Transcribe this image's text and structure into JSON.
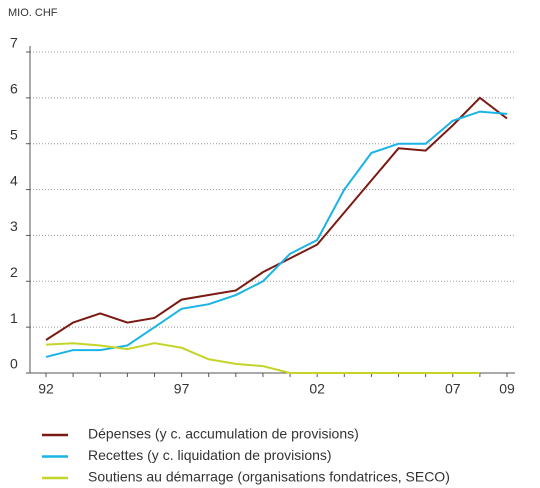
{
  "chart_data": {
    "type": "line",
    "ylabel": "MIO. CHF",
    "categories": [
      "92",
      null,
      null,
      null,
      null,
      "97",
      null,
      null,
      null,
      null,
      "02",
      null,
      null,
      null,
      null,
      "07",
      null,
      "09"
    ],
    "ylim": [
      0,
      7
    ],
    "yticks": [
      0,
      1,
      2,
      3,
      4,
      5,
      6,
      7
    ],
    "grid": true,
    "series": [
      {
        "name": "Dépenses (y c. accumulation de provisions)",
        "color": "#7a1a12",
        "values": [
          0.72,
          1.1,
          1.3,
          1.1,
          1.2,
          1.6,
          1.7,
          1.8,
          2.2,
          2.5,
          2.8,
          3.5,
          4.2,
          4.9,
          4.85,
          5.4,
          6.0,
          5.55
        ]
      },
      {
        "name": "Recettes (y c. liquidation de provisions)",
        "color": "#1ab3e6",
        "values": [
          0.35,
          0.5,
          0.5,
          0.6,
          1.0,
          1.4,
          1.5,
          1.7,
          2.0,
          2.6,
          2.9,
          4.0,
          4.8,
          5.0,
          5.0,
          5.5,
          5.7,
          5.65
        ]
      },
      {
        "name": "Soutiens au démarrage (organisations fondatrices, SECO)",
        "color": "#c4d42a",
        "values": [
          0.62,
          0.65,
          0.6,
          0.52,
          0.65,
          0.55,
          0.3,
          0.2,
          0.15,
          0,
          0,
          0,
          0,
          0,
          0,
          0,
          0,
          null
        ]
      }
    ]
  }
}
